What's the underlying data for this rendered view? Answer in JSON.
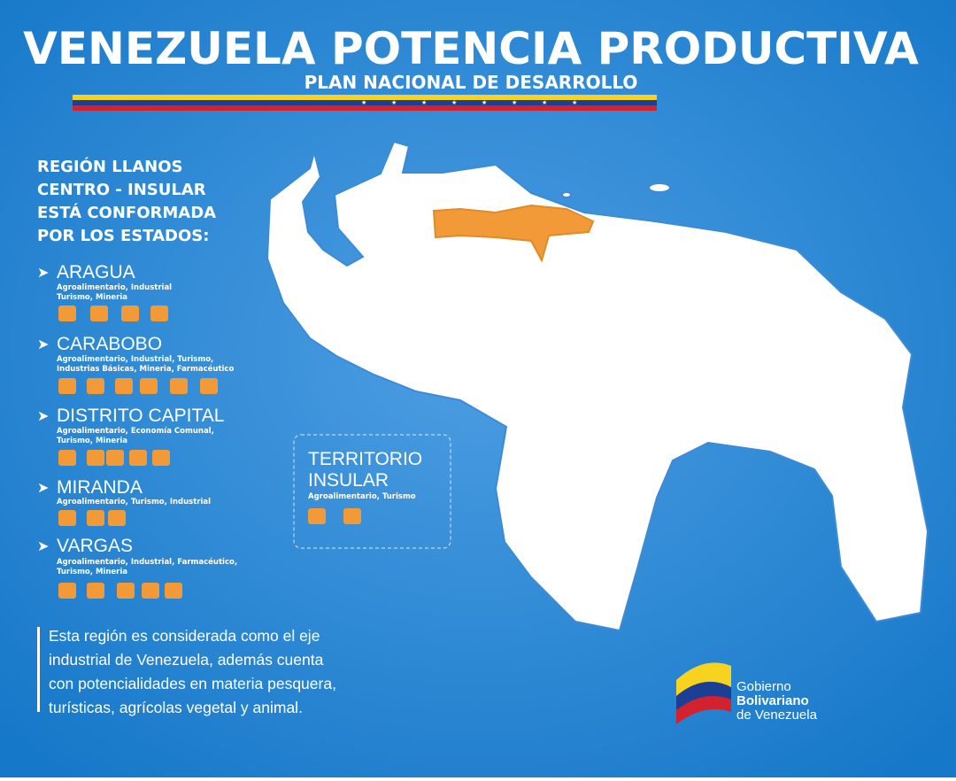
{
  "header": {
    "title": "VENEZUELA POTENCIA PRODUCTIVA",
    "subtitle": "PLAN NACIONAL DE DESARROLLO"
  },
  "region": {
    "heading_lines": [
      "REGIÓN LLANOS",
      "CENTRO - INSULAR",
      "ESTÁ CONFORMADA",
      "POR LOS ESTADOS:"
    ]
  },
  "states": [
    {
      "name": "ARAGUA",
      "sectors": [
        "Agroalimentario, Industrial",
        "Turismo, Mineria"
      ]
    },
    {
      "name": "CARABOBO",
      "sectors": [
        "Agroalimentario, Industrial, Turismo,",
        "Industrias Básicas, Mineria, Farmacéutico"
      ]
    },
    {
      "name": "DISTRITO CAPITAL",
      "sectors": [
        "Agroalimentario, Economía Comunal,",
        "Turismo, Mineria"
      ]
    },
    {
      "name": "MIRANDA",
      "sectors": [
        "Agroalimentario, Turismo, Industrial"
      ]
    },
    {
      "name": "VARGAS",
      "sectors": [
        "Agroalimentario, Industrial, Farmacéutico,",
        "Turismo, Mineria"
      ]
    }
  ],
  "insular": {
    "name_lines": [
      "TERRITORIO",
      "INSULAR"
    ],
    "sectors": "Agroalimentario, Turismo"
  },
  "description": [
    "Esta región es considerada como el eje",
    "industrial de Venezuela, además cuenta",
    "con potencialidades en materia pesquera,",
    "turísticas, agrícolas vegetal y animal."
  ],
  "logo": [
    "Gobierno",
    "Bolivariano",
    "de Venezuela"
  ]
}
